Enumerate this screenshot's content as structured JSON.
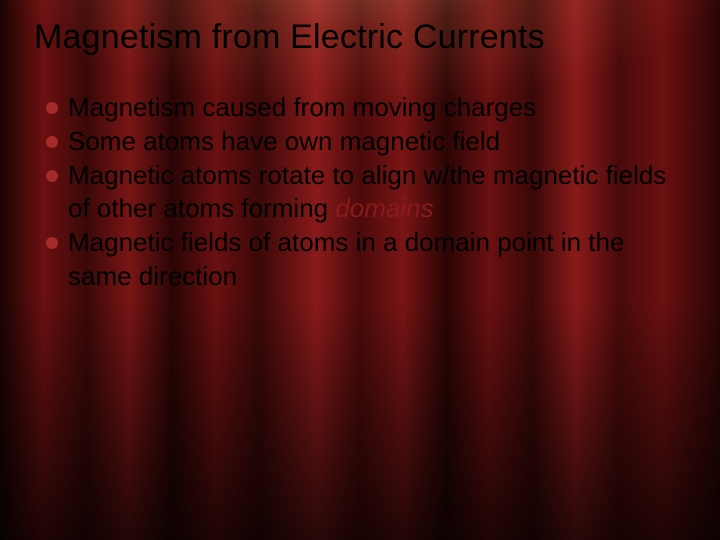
{
  "slide": {
    "title": "Magnetism from Electric Currents",
    "title_fontsize": 34,
    "title_color": "#000000",
    "body_fontsize": 26,
    "body_color": "#000000",
    "bullet_color": "#a52a2a",
    "italic_color": "#8a1a1a",
    "background_type": "curtain",
    "curtain_colors": [
      "#1a0303",
      "#6b1010",
      "#3a0808",
      "#7a1515",
      "#2a0505",
      "#8a1a1a",
      "#4a0a0a"
    ],
    "bullets": [
      {
        "text": "Magnetism caused from moving charges"
      },
      {
        "text": "Some atoms have own magnetic field"
      },
      {
        "text_prefix": "Magnetic atoms rotate to align w/the magnetic fields of other atoms forming ",
        "italic": "domains"
      },
      {
        "text": "Magnetic fields of atoms in a domain point in the same direction"
      }
    ]
  }
}
